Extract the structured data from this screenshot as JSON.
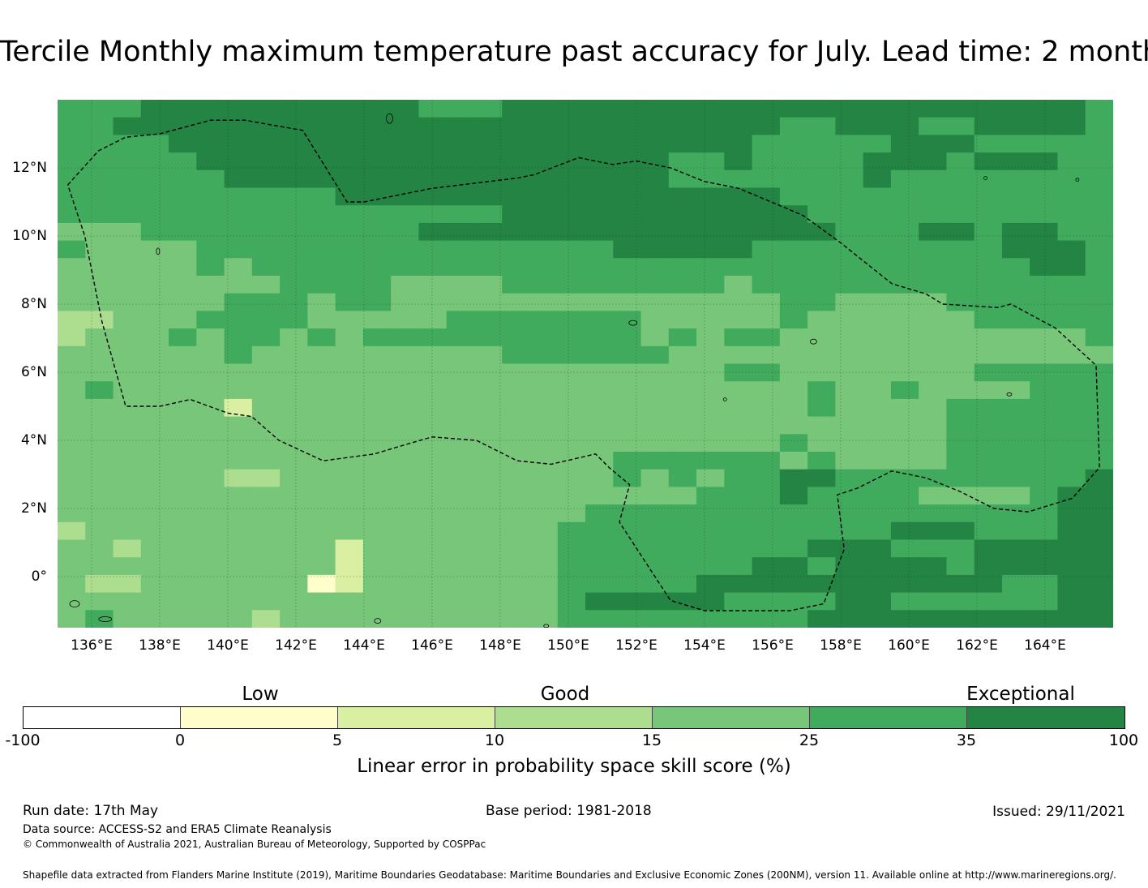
{
  "title": "Tercile Monthly maximum temperature past accuracy for July. Lead time: 2 month",
  "map": {
    "lat_labels": [
      "12°N",
      "10°N",
      "8°N",
      "6°N",
      "4°N",
      "2°N",
      "0°"
    ],
    "lon_labels": [
      "136°E",
      "138°E",
      "140°E",
      "142°E",
      "144°E",
      "146°E",
      "148°E",
      "150°E",
      "152°E",
      "154°E",
      "156°E",
      "158°E",
      "160°E",
      "162°E",
      "164°E"
    ],
    "ticks": {
      "lat": [
        12,
        10,
        8,
        6,
        4,
        2,
        0
      ],
      "lon": [
        136,
        138,
        140,
        142,
        144,
        146,
        148,
        150,
        152,
        154,
        156,
        158,
        160,
        162,
        164
      ]
    },
    "extent": {
      "lon_min": 135,
      "lon_max": 166,
      "lat_min": -1.5,
      "lat_max": 14
    },
    "grid_resolution_deg": 0.8333,
    "class_colors": [
      "#ffffff",
      "#ffffcc",
      "#d9f0a3",
      "#addd8e",
      "#78c679",
      "#41ab5d",
      "#238443"
    ],
    "grid_rows": [
      "55566666666665556666666666666666666665",
      "55666666666666666666666666556665566665",
      "55556666666666666666666665555566655555",
      "55555666666666666666665565555666566655",
      "55555566666666666666665555555655555555",
      "55555555556666666666666666555555555555",
      "55555555555555556666666666655555555555",
      "44455555555556666666666666665556656655",
      "54444555555555555555666665555555556665",
      "44444545555555555555555555555555555665",
      "44444444555544445555555545555555555555",
      "44444455545544444444444444554444555555",
      "33444555544444555555544444544444455555",
      "34445455454555555555545455444444444445",
      "44444454444444445555554444444444444444",
      "44444444444444444444444455444444455555",
      "45444444444444444444444444454454444555",
      "44444424444444444444444444454444555555",
      "44444444444444444444444444444444555555",
      "44444444444444444444444444544444555555",
      "44444444444444444444555555454444555555",
      "44444433444444444444545455665555555556",
      "44444444444444444444444555655554444566",
      "44444444444444444445555555555555555566",
      "34444444444444444455555555555566655566",
      "44344444442444444455555555566655566666",
      "44444444442444444455555556656666566666",
      "43344444412444444455555666666666665566",
      "44444444444444444456666655556655555566",
      "45444443444444444455555555566666666666"
    ],
    "eez_polygon": [
      [
        135.3,
        11.5
      ],
      [
        136.2,
        12.5
      ],
      [
        137.0,
        12.9
      ],
      [
        138.0,
        13.0
      ],
      [
        139.5,
        13.4
      ],
      [
        140.5,
        13.4
      ],
      [
        142.2,
        13.1
      ],
      [
        143.5,
        11.0
      ],
      [
        144.0,
        11.0
      ],
      [
        146.0,
        11.4
      ],
      [
        148.5,
        11.7
      ],
      [
        149.0,
        11.8
      ],
      [
        150.3,
        12.3
      ],
      [
        151.3,
        12.1
      ],
      [
        152.0,
        12.2
      ],
      [
        153.0,
        12.0
      ],
      [
        154.0,
        11.6
      ],
      [
        155.0,
        11.4
      ],
      [
        156.2,
        10.9
      ],
      [
        156.9,
        10.6
      ],
      [
        158.0,
        9.8
      ],
      [
        159.5,
        8.6
      ],
      [
        160.5,
        8.3
      ],
      [
        161.0,
        8.0
      ],
      [
        162.6,
        7.9
      ],
      [
        163.0,
        8.0
      ],
      [
        164.3,
        7.3
      ],
      [
        165.5,
        6.2
      ],
      [
        165.6,
        3.2
      ],
      [
        164.8,
        2.3
      ],
      [
        163.5,
        1.9
      ],
      [
        162.5,
        2.0
      ],
      [
        161.5,
        2.5
      ],
      [
        160.5,
        2.9
      ],
      [
        159.5,
        3.1
      ],
      [
        158.5,
        2.6
      ],
      [
        157.9,
        2.4
      ],
      [
        158.1,
        0.8
      ],
      [
        157.5,
        -0.8
      ],
      [
        156.5,
        -1.0
      ],
      [
        154.0,
        -1.0
      ],
      [
        153.0,
        -0.7
      ],
      [
        151.5,
        1.6
      ],
      [
        151.8,
        2.7
      ],
      [
        151.2,
        3.2
      ],
      [
        150.8,
        3.6
      ],
      [
        149.5,
        3.3
      ],
      [
        148.5,
        3.4
      ],
      [
        147.3,
        4.0
      ],
      [
        146.0,
        4.1
      ],
      [
        145.3,
        3.9
      ],
      [
        144.3,
        3.6
      ],
      [
        142.8,
        3.4
      ],
      [
        141.5,
        4.0
      ],
      [
        140.7,
        4.7
      ],
      [
        140.0,
        4.8
      ],
      [
        138.9,
        5.2
      ],
      [
        138.0,
        5.0
      ],
      [
        137.0,
        5.0
      ],
      [
        136.3,
        7.5
      ],
      [
        135.8,
        10.0
      ],
      [
        135.3,
        11.5
      ]
    ]
  },
  "colorbar": {
    "colors": [
      "#ffffff",
      "#ffffcc",
      "#d9f0a3",
      "#addd8e",
      "#78c679",
      "#41ab5d",
      "#238443"
    ],
    "ticks": [
      "-100",
      "0",
      "5",
      "10",
      "15",
      "25",
      "35",
      "100"
    ],
    "categories": [
      "Low",
      "Good",
      "Exceptional"
    ],
    "title": "Linear error in probability space skill score (%)"
  },
  "footer": {
    "run_date": "Run date: 17th May",
    "base_period": "Base period: 1981-2018",
    "issued": "Issued: 29/11/2021",
    "data_source": "Data source: ACCESS-S2 and ERA5 Climate Reanalysis",
    "copyright": "© Commonwealth of Australia 2021, Australian Bureau of Meteorology, Supported by COSPPac",
    "shapefile": "Shapefile data extracted from Flanders Marine Institute (2019), Maritime Boundaries Geodatabase: Maritime Boundaries and Exclusive Economic Zones (200NM), version 11. Available online at http://www.marineregions.org/."
  }
}
